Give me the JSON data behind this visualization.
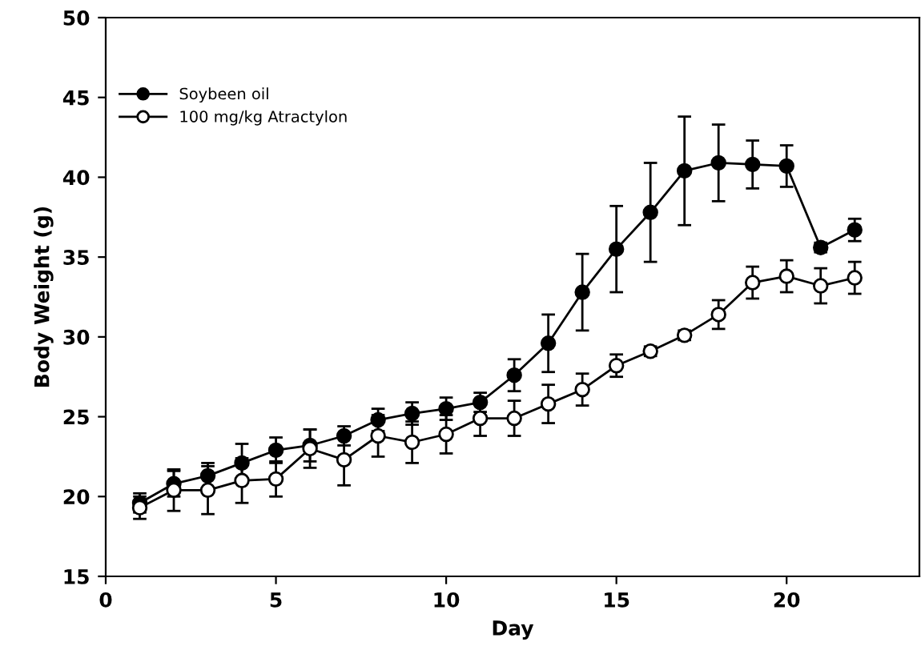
{
  "chart_data": {
    "type": "line",
    "xlabel": "Day",
    "ylabel": "Body Weight (g)",
    "x": [
      1,
      2,
      3,
      4,
      5,
      6,
      7,
      8,
      9,
      10,
      11,
      12,
      13,
      14,
      15,
      16,
      17,
      18,
      19,
      20,
      21,
      22
    ],
    "series": [
      {
        "name": "Soybeen oil",
        "color": "#000000",
        "marker": "circle",
        "values": [
          19.6,
          20.8,
          21.3,
          22.1,
          22.9,
          23.2,
          23.8,
          24.8,
          25.2,
          25.5,
          25.9,
          27.6,
          29.6,
          32.8,
          35.5,
          37.8,
          40.4,
          40.9,
          40.8,
          40.7,
          35.6,
          36.7
        ],
        "errors": [
          0.6,
          0.8,
          0.8,
          1.2,
          0.8,
          1.0,
          0.6,
          0.7,
          0.7,
          0.7,
          0.6,
          1.0,
          1.8,
          2.4,
          2.7,
          3.1,
          3.4,
          2.4,
          1.5,
          1.3,
          0.3,
          0.7
        ]
      },
      {
        "name": "100 mg/kg Atractylon",
        "color": "#ffffff",
        "marker": "circle",
        "values": [
          19.3,
          20.4,
          20.4,
          21.0,
          21.1,
          23.0,
          22.3,
          23.8,
          23.4,
          23.9,
          24.9,
          24.9,
          25.8,
          26.7,
          28.2,
          29.1,
          30.1,
          31.4,
          33.4,
          33.8,
          33.2,
          33.7
        ],
        "errors": [
          0.7,
          1.3,
          1.5,
          1.4,
          1.1,
          1.2,
          1.6,
          1.3,
          1.3,
          1.2,
          1.1,
          1.1,
          1.2,
          1.0,
          0.7,
          0.3,
          0.3,
          0.9,
          1.0,
          1.0,
          1.1,
          1.0
        ]
      }
    ],
    "xlim": [
      0,
      23.9
    ],
    "xticks": [
      0,
      5,
      10,
      15,
      20
    ],
    "ylim": [
      15,
      50
    ],
    "yticks": [
      15,
      20,
      25,
      30,
      35,
      40,
      45,
      50
    ],
    "grid": false,
    "legend": "top left",
    "line_style": "solid"
  }
}
